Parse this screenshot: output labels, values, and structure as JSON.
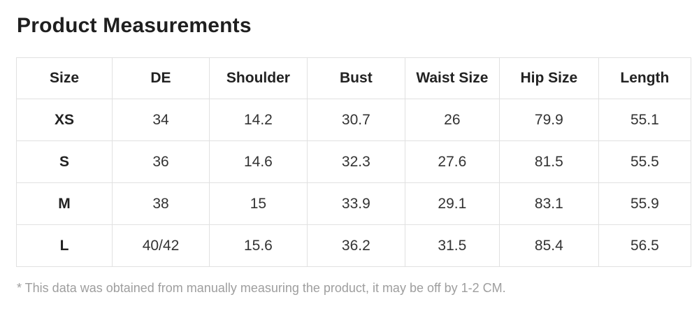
{
  "page": {
    "title": "Product Measurements",
    "footnote": "* This data was obtained from manually measuring the product, it may be off by 1-2 CM."
  },
  "table": {
    "columns": [
      "Size",
      "DE",
      "Shoulder",
      "Bust",
      "Waist Size",
      "Hip Size",
      "Length"
    ],
    "column_width_percents": [
      14.2,
      14.4,
      14.5,
      14.5,
      14.0,
      14.7,
      13.7
    ],
    "rows": [
      {
        "size": "XS",
        "values": [
          "34",
          "14.2",
          "30.7",
          "26",
          "79.9",
          "55.1"
        ]
      },
      {
        "size": "S",
        "values": [
          "36",
          "14.6",
          "32.3",
          "27.6",
          "81.5",
          "55.5"
        ]
      },
      {
        "size": "M",
        "values": [
          "38",
          "15",
          "33.9",
          "29.1",
          "83.1",
          "55.9"
        ]
      },
      {
        "size": "L",
        "values": [
          "40/42",
          "15.6",
          "36.2",
          "31.5",
          "85.4",
          "56.5"
        ]
      }
    ]
  },
  "colors": {
    "title_text": "#1f1f1f",
    "header_text": "#222222",
    "data_text": "#333333",
    "table_border": "#e1e1e1",
    "footnote_text": "#9e9e9e",
    "background": "#ffffff"
  }
}
